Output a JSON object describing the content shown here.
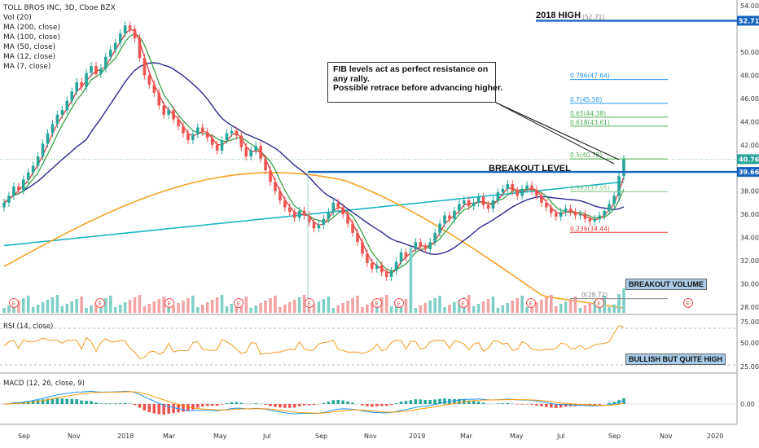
{
  "header": {
    "title": "TOLL BROS INC, 3D, Cboe BZX",
    "indicators": [
      "Vol (20)",
      "MA (200, close)",
      "MA (100, close)",
      "MA (50, close)",
      "MA (12, close)",
      "MA (7, close)"
    ]
  },
  "annotations": {
    "note_lines": [
      "FIB levels act as perfect resistance on",
      "any rally.",
      "Possible retrace before advancing higher."
    ],
    "breakout_level": "BREAKOUT LEVEL",
    "high_2018": "2018 HIGH",
    "breakout_volume": "BREAKOUT VOLUME",
    "bullish": "BULLISH BUT QUITE HIGH"
  },
  "panes": {
    "rsi_label": "RSI (14, close)",
    "macd_label": "MACD (12, 26, close, 9)"
  },
  "colors": {
    "up": "#26a69a",
    "down": "#ef5350",
    "ma200": "#f7a325",
    "ma100": "#19b6c2",
    "ma50": "#2c2a8c",
    "ma12": "#2e9b3a",
    "ma7": "#e0302f",
    "level": "#1565c0",
    "rsi": "#f59a23",
    "tag_bg": "#a9cbe8"
  },
  "chart_data": {
    "type": "candlestick",
    "symbol": "TOLL BROS INC",
    "interval": "3D",
    "x_ticks": [
      "Sep",
      "Nov",
      "2018",
      "Mar",
      "May",
      "Jul",
      "Sep",
      "Nov",
      "2019",
      "Mar",
      "May",
      "Jul",
      "Sep",
      "Nov",
      "2020"
    ],
    "y_ticks": [
      "54.00",
      "52.71",
      "50.00",
      "48.00",
      "46.00",
      "44.00",
      "42.00",
      "40.76",
      "39.66",
      "38.00",
      "36.00",
      "34.00",
      "32.00",
      "30.00",
      "28.00"
    ],
    "ylim": [
      27.5,
      54.5
    ],
    "price_markers": [
      {
        "label": "52.71",
        "value": 52.71
      },
      {
        "label": "40.76",
        "value": 40.76
      },
      {
        "label": "39.66",
        "value": 39.66
      }
    ],
    "fib_levels": [
      {
        "label": "(52.71)",
        "value": 52.71
      },
      {
        "label": "0.786(47.64)",
        "value": 47.64
      },
      {
        "label": "0.7(45.58)",
        "value": 45.58
      },
      {
        "label": "0.65(44.38)",
        "value": 44.38
      },
      {
        "label": "0.618(43.61)",
        "value": 43.61
      },
      {
        "label": "0.5(40.78)",
        "value": 40.78
      },
      {
        "label": "0.382(37.95)",
        "value": 37.95
      },
      {
        "label": "0.236(34.44)",
        "value": 34.44
      },
      {
        "label": "0(28.72)",
        "value": 28.72
      }
    ],
    "breakout_level": 39.66,
    "high_2018": 52.71,
    "close_series": [
      37.0,
      37.6,
      38.4,
      38.1,
      39.0,
      39.6,
      40.2,
      41.0,
      42.1,
      43.0,
      43.8,
      44.6,
      45.0,
      45.8,
      46.6,
      47.4,
      47.0,
      48.2,
      48.8,
      48.1,
      48.6,
      49.6,
      50.2,
      50.8,
      51.6,
      52.3,
      52.0,
      51.2,
      49.5,
      48.0,
      47.2,
      46.5,
      45.4,
      44.6,
      45.0,
      44.2,
      43.6,
      43.0,
      42.4,
      42.9,
      43.5,
      43.1,
      42.6,
      42.0,
      41.5,
      42.4,
      43.0,
      43.2,
      42.8,
      41.8,
      41.0,
      41.5,
      41.9,
      40.8,
      39.8,
      38.8,
      38.0,
      37.2,
      36.6,
      36.2,
      35.7,
      36.3,
      35.9,
      35.3,
      34.8,
      35.1,
      35.6,
      36.2,
      37.0,
      36.6,
      36.0,
      35.2,
      34.4,
      33.6,
      32.6,
      31.8,
      31.3,
      31.6,
      31.0,
      30.6,
      31.1,
      31.9,
      32.7,
      32.3,
      33.0,
      33.6,
      33.2,
      33.0,
      33.6,
      34.4,
      35.2,
      35.9,
      35.6,
      36.3,
      36.9,
      37.2,
      36.7,
      37.0,
      37.5,
      36.8,
      36.5,
      37.2,
      37.9,
      38.2,
      38.6,
      38.0,
      37.6,
      38.2,
      38.5,
      38.1,
      37.6,
      37.0,
      36.6,
      36.1,
      35.8,
      36.2,
      36.5,
      36.2,
      35.9,
      36.0,
      35.6,
      35.4,
      35.6,
      35.9,
      36.3,
      36.9,
      37.6,
      39.3,
      40.76
    ],
    "volume_note": "BREAKOUT VOLUME"
  }
}
